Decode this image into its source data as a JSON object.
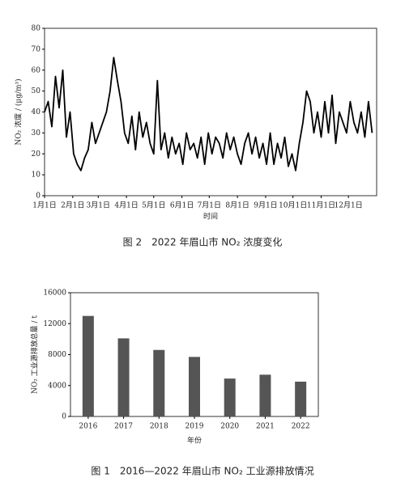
{
  "chart_data": [
    {
      "type": "line",
      "title": "图 2　2022 年眉山市 NO₂ 浓度变化",
      "ylabel": "NO₂ 浓度 / (μg/m³)",
      "xlabel": "时间",
      "color": "#000000",
      "x": [
        1,
        5,
        9,
        13,
        17,
        21,
        25,
        29,
        33,
        37,
        41,
        45,
        49,
        53,
        57,
        61,
        65,
        69,
        73,
        77,
        81,
        85,
        89,
        93,
        97,
        101,
        105,
        109,
        113,
        117,
        121,
        125,
        129,
        133,
        137,
        141,
        145,
        149,
        153,
        157,
        161,
        165,
        169,
        173,
        177,
        181,
        185,
        189,
        193,
        197,
        201,
        205,
        209,
        213,
        217,
        221,
        225,
        229,
        233,
        237,
        241,
        245,
        249,
        253,
        257,
        261,
        265,
        269,
        273,
        277,
        281,
        285,
        289,
        293,
        297,
        301,
        305,
        309,
        313,
        317,
        321,
        325,
        329,
        333,
        337,
        341,
        345,
        349,
        353,
        357,
        361
      ],
      "values": [
        40,
        45,
        33,
        57,
        42,
        60,
        28,
        40,
        20,
        15,
        12,
        18,
        22,
        35,
        25,
        30,
        35,
        40,
        50,
        66,
        55,
        45,
        30,
        25,
        38,
        22,
        40,
        28,
        35,
        25,
        20,
        55,
        22,
        30,
        18,
        28,
        20,
        25,
        15,
        30,
        22,
        25,
        18,
        28,
        15,
        30,
        20,
        28,
        25,
        18,
        30,
        22,
        28,
        20,
        15,
        25,
        30,
        20,
        28,
        18,
        25,
        15,
        30,
        15,
        25,
        18,
        28,
        14,
        20,
        12,
        25,
        35,
        50,
        45,
        30,
        40,
        28,
        45,
        30,
        48,
        25,
        40,
        35,
        30,
        45,
        35,
        30,
        40,
        28,
        45,
        30
      ],
      "xlim": [
        1,
        366
      ],
      "xticks": [
        {
          "value": 1,
          "label": "1月1日"
        },
        {
          "value": 32,
          "label": "2月1日"
        },
        {
          "value": 60,
          "label": "3月1日"
        },
        {
          "value": 91,
          "label": "4月1日"
        },
        {
          "value": 121,
          "label": "5月1日"
        },
        {
          "value": 152,
          "label": "6月1日"
        },
        {
          "value": 182,
          "label": "7月1日"
        },
        {
          "value": 213,
          "label": "8月1日"
        },
        {
          "value": 244,
          "label": "9月1日"
        },
        {
          "value": 274,
          "label": "10月1日"
        },
        {
          "value": 305,
          "label": "11月1日"
        },
        {
          "value": 335,
          "label": "12月1日"
        }
      ],
      "ylim": [
        0,
        80
      ],
      "yticks": [
        0,
        10,
        20,
        30,
        40,
        50,
        60,
        70,
        80
      ]
    },
    {
      "type": "bar",
      "title": "图 1　2016—2022 年眉山市 NO₂ 工业源排放情况",
      "ylabel": "NO₂ 工业源排放总量 / t",
      "xlabel": "年份",
      "color": "#555555",
      "categories": [
        "2016",
        "2017",
        "2018",
        "2019",
        "2020",
        "2021",
        "2022"
      ],
      "values": [
        13000,
        10100,
        8600,
        7700,
        4900,
        5400,
        4500
      ],
      "ylim": [
        0,
        16000
      ],
      "yticks": [
        0,
        4000,
        8000,
        12000,
        16000
      ]
    }
  ]
}
